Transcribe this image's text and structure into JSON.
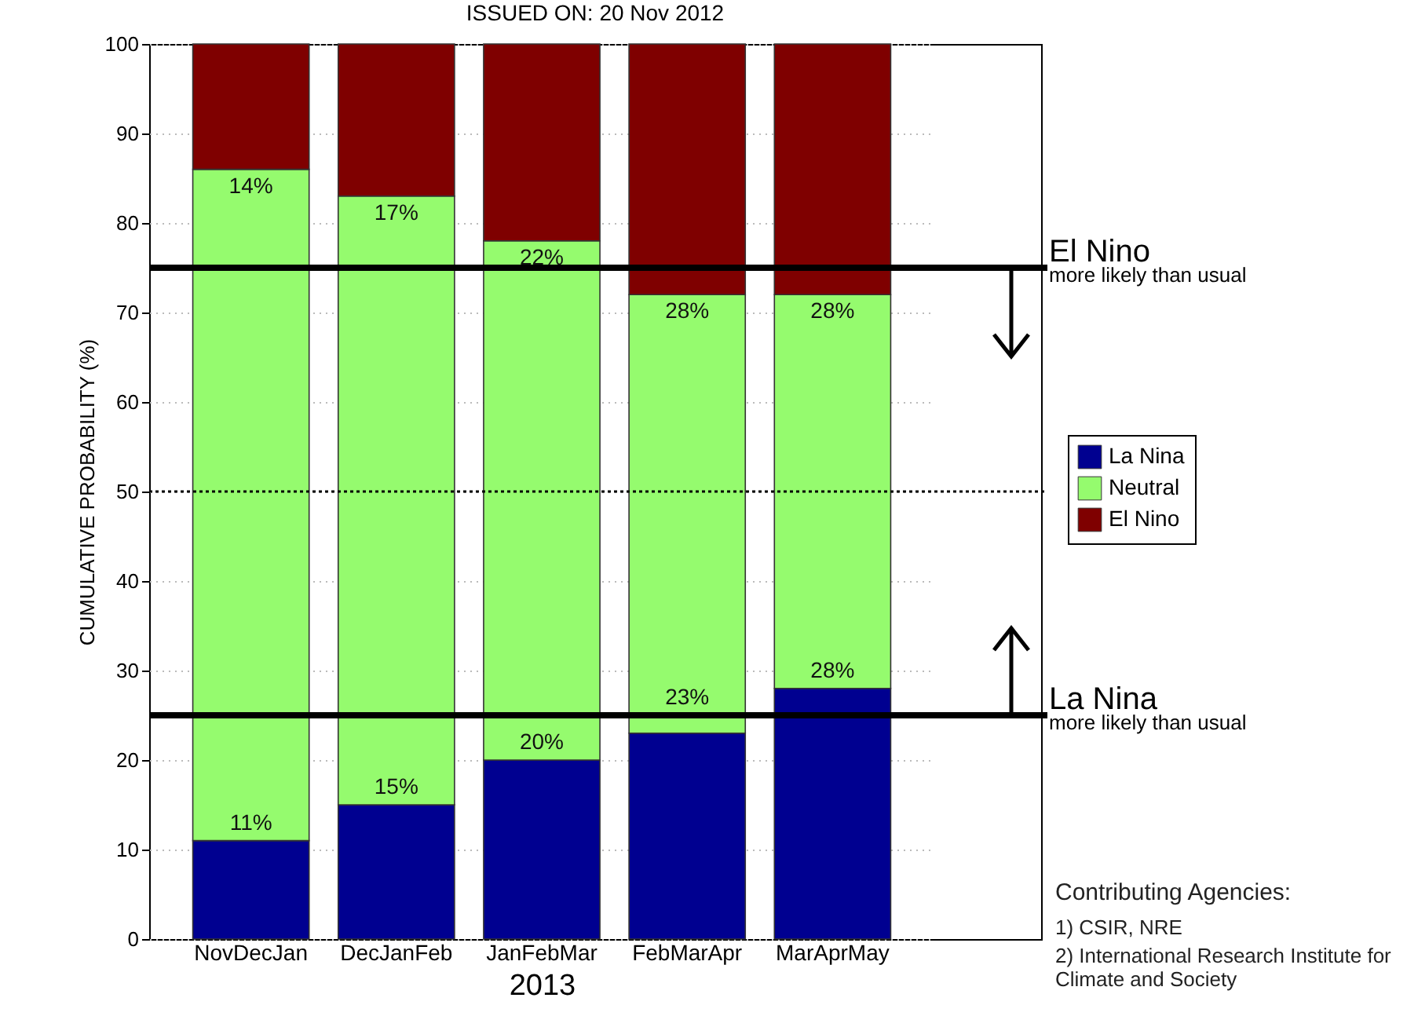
{
  "chart_data": {
    "type": "bar",
    "stacked": true,
    "title": "ISSUED ON: 20 Nov 2012",
    "xlabel": "2013",
    "ylabel": "CUMULATIVE PROBABILITY (%)",
    "categories": [
      "NovDecJan",
      "DecJanFeb",
      "JanFebMar",
      "FebMarApr",
      "MarAprMay"
    ],
    "series": [
      {
        "name": "La Nina",
        "color": "#000090",
        "values": [
          11,
          15,
          20,
          23,
          28
        ],
        "value_labels": [
          "11%",
          "15%",
          "20%",
          "23%",
          "28%"
        ]
      },
      {
        "name": "Neutral",
        "color": "#95fb6e",
        "values": [
          75,
          68,
          58,
          49,
          44
        ]
      },
      {
        "name": "El Nino",
        "color": "#7f0000",
        "values": [
          14,
          17,
          22,
          28,
          28
        ],
        "value_labels": [
          "14%",
          "17%",
          "22%",
          "28%",
          "28%"
        ]
      }
    ],
    "ylim": [
      0,
      100
    ],
    "yticks": [
      0,
      10,
      20,
      30,
      40,
      50,
      60,
      70,
      80,
      90,
      100
    ],
    "grid": "y",
    "legend": "right",
    "ref_lines": [
      {
        "axis": "y",
        "value": 75,
        "label": "El Nino\nmore likely than usual"
      },
      {
        "axis": "y",
        "value": 50,
        "line_style": "dotted"
      },
      {
        "axis": "y",
        "value": 25,
        "label": "La Nina\nmore likely than usual"
      }
    ],
    "annotations": [
      "Contributing Agencies:",
      "1) CSIR, NRE",
      "2) International Research Institute for Climate and Society"
    ]
  }
}
